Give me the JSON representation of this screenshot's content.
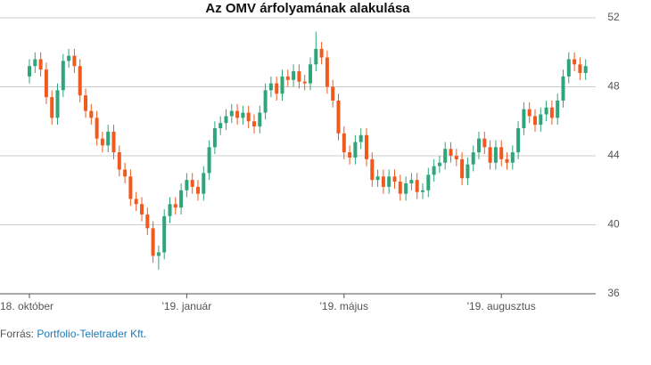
{
  "chart_data": {
    "type": "candlestick",
    "title": "Az OMV árfolyamának alakulása",
    "source_label": "Forrás:",
    "source": "Portfolio-Teletrader Kft.",
    "up_color": "#2fa57a",
    "down_color": "#f05a1e",
    "grid": true,
    "ylim": [
      36,
      52
    ],
    "yticks": [
      36,
      40,
      44,
      48,
      52
    ],
    "categories": [
      "18. október",
      null,
      null,
      null,
      null,
      null,
      null,
      null,
      null,
      null,
      null,
      null,
      null,
      null,
      null,
      null,
      null,
      null,
      null,
      null,
      null,
      null,
      null,
      null,
      null,
      null,
      null,
      null,
      "'19. január",
      null,
      null,
      null,
      null,
      null,
      null,
      null,
      null,
      null,
      null,
      null,
      null,
      null,
      null,
      null,
      null,
      null,
      null,
      null,
      null,
      null,
      null,
      null,
      null,
      null,
      null,
      null,
      "'19. május",
      null,
      null,
      null,
      null,
      null,
      null,
      null,
      null,
      null,
      null,
      null,
      null,
      null,
      null,
      null,
      null,
      null,
      null,
      null,
      null,
      null,
      null,
      null,
      null,
      null,
      null,
      null,
      "'19. augusztus",
      null,
      null,
      null,
      null,
      null,
      null,
      null,
      null,
      null,
      null,
      null,
      null,
      null,
      null,
      null
    ],
    "open": [
      48.6,
      49.2,
      49.6,
      49.0,
      47.4,
      46.2,
      47.8,
      49.5,
      49.8,
      49.2,
      47.5,
      46.6,
      46.2,
      45.0,
      44.6,
      45.4,
      44.2,
      43.2,
      42.8,
      41.5,
      41.2,
      40.6,
      39.8,
      38.2,
      38.4,
      40.5,
      41.2,
      41.0,
      42.0,
      42.6,
      42.2,
      41.8,
      43.0,
      44.5,
      45.6,
      45.9,
      46.3,
      46.6,
      46.2,
      46.5,
      46.0,
      45.7,
      46.5,
      47.8,
      48.2,
      47.6,
      48.6,
      48.4,
      48.9,
      48.3,
      48.2,
      49.3,
      50.2,
      49.7,
      48.0,
      47.2,
      45.3,
      44.2,
      43.9,
      44.8,
      45.2,
      43.8,
      42.6,
      42.8,
      42.2,
      42.8,
      42.5,
      41.8,
      42.4,
      42.6,
      41.9,
      42.0,
      42.9,
      43.4,
      43.6,
      44.4,
      44.0,
      43.8,
      42.7,
      43.5,
      44.2,
      45.0,
      44.5,
      43.6,
      44.5,
      43.8,
      43.6,
      44.2,
      45.6,
      46.7,
      46.3,
      45.8,
      46.4,
      46.8,
      46.2,
      47.2,
      48.6,
      49.6,
      49.3,
      48.8
    ],
    "high": [
      49.6,
      50.0,
      50.0,
      49.4,
      47.8,
      48.2,
      49.9,
      50.2,
      50.2,
      49.6,
      47.9,
      47.0,
      46.6,
      45.4,
      45.8,
      45.8,
      44.6,
      43.6,
      43.2,
      41.9,
      41.6,
      41.0,
      40.2,
      38.8,
      40.9,
      41.6,
      41.6,
      42.4,
      43.0,
      43.0,
      42.6,
      43.4,
      44.9,
      46.0,
      46.3,
      46.7,
      47.0,
      47.0,
      46.9,
      46.9,
      46.4,
      46.9,
      48.2,
      48.6,
      48.6,
      49.0,
      49.0,
      49.3,
      49.3,
      48.7,
      49.7,
      51.2,
      50.6,
      50.1,
      48.4,
      47.6,
      45.7,
      44.6,
      45.2,
      45.6,
      45.6,
      44.2,
      43.2,
      43.2,
      43.2,
      43.2,
      42.9,
      42.8,
      43.0,
      43.0,
      42.4,
      43.3,
      43.8,
      44.0,
      44.8,
      44.8,
      44.4,
      44.2,
      43.9,
      44.6,
      45.4,
      45.4,
      44.9,
      44.9,
      44.9,
      44.2,
      44.6,
      46.0,
      47.1,
      47.1,
      46.7,
      46.8,
      47.2,
      47.2,
      47.6,
      49.0,
      50.0,
      50.0,
      49.7,
      49.6
    ],
    "low": [
      48.2,
      48.8,
      48.6,
      47.0,
      45.8,
      45.8,
      47.4,
      49.1,
      48.8,
      47.1,
      46.2,
      45.8,
      44.6,
      44.2,
      44.2,
      43.8,
      42.8,
      42.4,
      41.1,
      40.8,
      40.2,
      39.4,
      37.8,
      37.4,
      38.0,
      40.1,
      40.6,
      40.6,
      41.6,
      41.8,
      41.4,
      41.4,
      42.6,
      44.1,
      45.2,
      45.5,
      45.9,
      45.8,
      45.8,
      45.6,
      45.3,
      45.3,
      46.1,
      47.4,
      47.2,
      47.2,
      48.0,
      48.0,
      47.9,
      47.8,
      47.8,
      48.9,
      49.3,
      47.6,
      46.8,
      44.9,
      43.8,
      43.5,
      43.5,
      44.4,
      43.4,
      42.2,
      42.2,
      41.8,
      41.8,
      42.1,
      41.4,
      41.4,
      42.0,
      41.5,
      41.5,
      41.6,
      42.5,
      43.0,
      43.2,
      43.6,
      43.4,
      42.3,
      42.3,
      43.1,
      43.8,
      44.1,
      43.2,
      43.2,
      43.4,
      43.2,
      43.2,
      43.8,
      45.2,
      45.9,
      45.4,
      45.4,
      46.0,
      45.8,
      45.8,
      46.8,
      48.2,
      48.9,
      48.4,
      48.4
    ],
    "close": [
      49.2,
      49.6,
      49.0,
      47.4,
      46.2,
      47.8,
      49.5,
      49.8,
      49.2,
      47.5,
      46.6,
      46.2,
      45.0,
      44.6,
      45.4,
      44.2,
      43.2,
      42.8,
      41.5,
      41.2,
      40.6,
      39.8,
      38.2,
      38.4,
      40.5,
      41.2,
      41.0,
      42.0,
      42.6,
      42.2,
      41.8,
      43.0,
      44.5,
      45.6,
      45.9,
      46.3,
      46.6,
      46.2,
      46.5,
      46.0,
      45.7,
      46.5,
      47.8,
      48.2,
      47.6,
      48.6,
      48.4,
      48.9,
      48.3,
      48.2,
      49.3,
      50.2,
      49.7,
      48.0,
      47.2,
      45.3,
      44.2,
      43.9,
      44.8,
      45.2,
      43.8,
      42.6,
      42.8,
      42.2,
      42.8,
      42.5,
      41.8,
      42.4,
      42.6,
      41.9,
      42.0,
      42.9,
      43.4,
      43.6,
      44.4,
      44.0,
      43.8,
      42.7,
      43.5,
      44.2,
      45.0,
      44.5,
      43.6,
      44.5,
      43.8,
      43.6,
      44.2,
      45.6,
      46.7,
      46.3,
      45.8,
      46.4,
      46.8,
      46.2,
      47.2,
      48.6,
      49.6,
      49.3,
      48.8,
      49.2
    ]
  }
}
